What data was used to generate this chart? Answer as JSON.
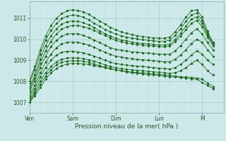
{
  "background_color": "#cce8e8",
  "plot_bg_color": "#cce8e8",
  "grid_color_major": "#aacccc",
  "grid_color_minor": "#bbdddd",
  "line_color": "#1a6b1a",
  "ylim": [
    1006.5,
    1011.8
  ],
  "xlim": [
    0,
    108
  ],
  "yticks": [
    1007,
    1008,
    1009,
    1010,
    1011
  ],
  "xtick_positions": [
    0,
    24,
    48,
    72,
    96
  ],
  "xtick_labels": [
    "Ven",
    "Sam",
    "Dim",
    "Lun",
    "M"
  ],
  "xlabel": "Pression niveau de la mer( hPa )",
  "series": [
    [
      1007.0,
      1007.3,
      1007.7,
      1008.1,
      1008.4,
      1008.6,
      1008.75,
      1008.82,
      1008.85,
      1008.85,
      1008.83,
      1008.8,
      1008.75,
      1008.7,
      1008.65,
      1008.6,
      1008.55,
      1008.5,
      1008.45,
      1008.4,
      1008.38,
      1008.35,
      1008.32,
      1008.3,
      1008.28,
      1008.25,
      1008.22,
      1008.2,
      1008.18,
      1008.15,
      1008.12,
      1008.1,
      1007.95,
      1007.8,
      1007.65
    ],
    [
      1007.05,
      1007.4,
      1007.85,
      1008.25,
      1008.55,
      1008.78,
      1008.9,
      1008.95,
      1008.97,
      1008.97,
      1008.95,
      1008.9,
      1008.83,
      1008.75,
      1008.67,
      1008.6,
      1008.55,
      1008.5,
      1008.47,
      1008.44,
      1008.42,
      1008.4,
      1008.37,
      1008.35,
      1008.33,
      1008.3,
      1008.27,
      1008.25,
      1008.22,
      1008.2,
      1008.18,
      1008.16,
      1008.1,
      1007.92,
      1007.75
    ],
    [
      1007.1,
      1007.5,
      1008.0,
      1008.4,
      1008.7,
      1008.93,
      1009.05,
      1009.1,
      1009.12,
      1009.1,
      1009.07,
      1009.02,
      1008.95,
      1008.87,
      1008.78,
      1008.7,
      1008.65,
      1008.6,
      1008.57,
      1008.54,
      1008.52,
      1008.5,
      1008.47,
      1008.45,
      1008.43,
      1008.4,
      1008.37,
      1008.4,
      1008.5,
      1008.65,
      1008.85,
      1009.0,
      1008.8,
      1008.5,
      1008.3
    ],
    [
      1007.2,
      1007.65,
      1008.2,
      1008.65,
      1009.0,
      1009.25,
      1009.38,
      1009.42,
      1009.43,
      1009.4,
      1009.35,
      1009.28,
      1009.2,
      1009.1,
      1009.0,
      1008.9,
      1008.85,
      1008.8,
      1008.77,
      1008.74,
      1008.72,
      1008.7,
      1008.68,
      1008.65,
      1008.63,
      1008.6,
      1008.58,
      1008.65,
      1008.8,
      1009.0,
      1009.25,
      1009.45,
      1009.3,
      1009.0,
      1008.8
    ],
    [
      1007.3,
      1007.8,
      1008.4,
      1008.9,
      1009.3,
      1009.6,
      1009.78,
      1009.85,
      1009.87,
      1009.85,
      1009.8,
      1009.72,
      1009.62,
      1009.5,
      1009.38,
      1009.28,
      1009.2,
      1009.15,
      1009.1,
      1009.07,
      1009.04,
      1009.02,
      1009.0,
      1008.97,
      1008.95,
      1008.93,
      1008.92,
      1009.05,
      1009.25,
      1009.5,
      1009.8,
      1010.0,
      1009.85,
      1009.5,
      1009.2
    ],
    [
      1007.5,
      1008.0,
      1008.65,
      1009.2,
      1009.65,
      1009.95,
      1010.15,
      1010.25,
      1010.27,
      1010.25,
      1010.18,
      1010.08,
      1009.97,
      1009.84,
      1009.72,
      1009.6,
      1009.52,
      1009.48,
      1009.44,
      1009.4,
      1009.38,
      1009.36,
      1009.34,
      1009.32,
      1009.3,
      1009.28,
      1009.28,
      1009.45,
      1009.7,
      1010.0,
      1010.3,
      1010.5,
      1010.25,
      1009.85,
      1009.5
    ],
    [
      1007.6,
      1008.15,
      1008.85,
      1009.45,
      1009.9,
      1010.25,
      1010.48,
      1010.6,
      1010.65,
      1010.65,
      1010.6,
      1010.52,
      1010.42,
      1010.3,
      1010.18,
      1010.06,
      1009.95,
      1009.88,
      1009.83,
      1009.78,
      1009.75,
      1009.72,
      1009.7,
      1009.68,
      1009.65,
      1009.65,
      1009.68,
      1009.88,
      1010.15,
      1010.45,
      1010.75,
      1010.9,
      1010.6,
      1010.1,
      1009.7
    ],
    [
      1007.7,
      1008.3,
      1009.05,
      1009.7,
      1010.15,
      1010.5,
      1010.72,
      1010.83,
      1010.87,
      1010.85,
      1010.78,
      1010.68,
      1010.55,
      1010.4,
      1010.27,
      1010.15,
      1010.05,
      1009.97,
      1009.92,
      1009.87,
      1009.83,
      1009.8,
      1009.78,
      1009.75,
      1009.73,
      1009.73,
      1009.77,
      1009.98,
      1010.28,
      1010.62,
      1010.95,
      1011.07,
      1010.75,
      1010.2,
      1009.78
    ],
    [
      1007.9,
      1008.55,
      1009.3,
      1009.95,
      1010.42,
      1010.75,
      1010.98,
      1011.1,
      1011.15,
      1011.12,
      1011.05,
      1010.92,
      1010.77,
      1010.62,
      1010.47,
      1010.35,
      1010.25,
      1010.17,
      1010.1,
      1010.05,
      1010.02,
      1009.98,
      1009.95,
      1009.93,
      1009.9,
      1009.9,
      1009.95,
      1010.18,
      1010.5,
      1010.85,
      1011.15,
      1011.25,
      1010.9,
      1010.28,
      1009.8
    ],
    [
      1008.0,
      1008.7,
      1009.5,
      1010.15,
      1010.65,
      1011.0,
      1011.22,
      1011.35,
      1011.4,
      1011.38,
      1011.3,
      1011.18,
      1011.03,
      1010.87,
      1010.72,
      1010.57,
      1010.45,
      1010.35,
      1010.28,
      1010.22,
      1010.17,
      1010.13,
      1010.1,
      1010.07,
      1010.05,
      1010.05,
      1010.1,
      1010.35,
      1010.68,
      1011.05,
      1011.35,
      1011.4,
      1011.05,
      1010.38,
      1009.85
    ]
  ],
  "x_points": [
    0,
    3,
    6,
    9,
    12,
    15,
    18,
    21,
    24,
    27,
    30,
    33,
    36,
    39,
    42,
    45,
    48,
    51,
    54,
    57,
    60,
    63,
    66,
    69,
    72,
    75,
    78,
    81,
    84,
    87,
    90,
    93,
    96,
    99,
    102
  ],
  "figsize": [
    3.2,
    2.0
  ],
  "dpi": 100
}
